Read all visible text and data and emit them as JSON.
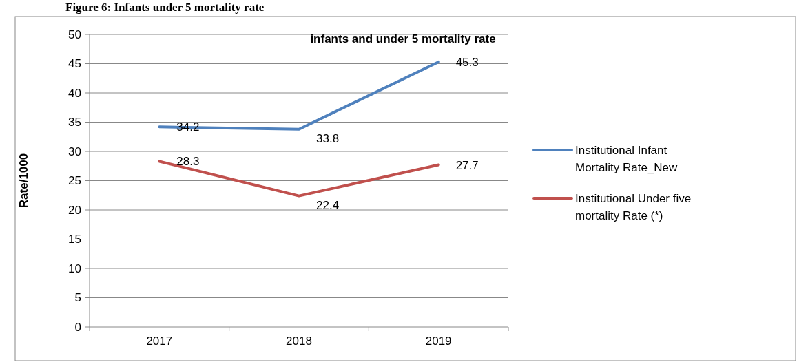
{
  "chart_data": {
    "type": "line",
    "title": "infants and under 5 mortality rate",
    "ylabel": "Rate/1000",
    "annotations": [
      "Figure 6: Infants under 5 mortality rate"
    ],
    "categories": [
      "2017",
      "2018",
      "2019"
    ],
    "series": [
      {
        "name": "Institutional Infant Mortality Rate_New",
        "color": "#4f81bd",
        "values": [
          34.2,
          33.8,
          45.3
        ]
      },
      {
        "name": "Institutional Under five mortality Rate (*)",
        "color": "#c0504d",
        "values": [
          28.3,
          22.4,
          27.7
        ]
      }
    ],
    "ylim": [
      0,
      50
    ],
    "yticks": [
      0,
      5,
      10,
      15,
      20,
      25,
      30,
      35,
      40,
      45,
      50
    ],
    "grid": "y",
    "legend": "right",
    "data_labels": true,
    "marker": "none",
    "line_style": "solid"
  }
}
